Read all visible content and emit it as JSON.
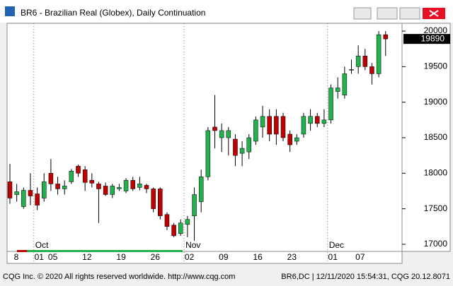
{
  "window_title": "BR6 - Brazilian Real (Globex), Daily Continuation",
  "footer_left": "CQG Inc. © 2020 All rights reserved worldwide. http://www.cqg.com",
  "footer_right": "BR6,DC | 12/11/2020 15:54:31, CQG 20.12.8071",
  "chart_data": {
    "type": "candlestick",
    "categories": [
      null,
      "8",
      null,
      null,
      "01",
      null,
      "05",
      null,
      null,
      null,
      null,
      "12",
      null,
      null,
      null,
      null,
      "19",
      null,
      null,
      null,
      null,
      "26",
      null,
      null,
      null,
      null,
      "02",
      null,
      null,
      null,
      null,
      "09",
      null,
      null,
      null,
      null,
      "16",
      null,
      null,
      null,
      null,
      "23",
      null,
      null,
      null,
      null,
      null,
      "01",
      null,
      null,
      null,
      "07",
      null,
      null,
      null,
      null
    ],
    "month_labels": [
      null,
      null,
      null,
      null,
      "Oct",
      null,
      null,
      null,
      null,
      null,
      null,
      null,
      null,
      null,
      null,
      null,
      null,
      null,
      null,
      null,
      null,
      null,
      null,
      null,
      null,
      null,
      "Nov",
      null,
      null,
      null,
      null,
      null,
      null,
      null,
      null,
      null,
      null,
      null,
      null,
      null,
      null,
      null,
      null,
      null,
      null,
      null,
      null,
      "Dec",
      null,
      null,
      null,
      null,
      null,
      null,
      null,
      null
    ],
    "open": [
      17880,
      17700,
      17530,
      17760,
      17710,
      17650,
      18000,
      17850,
      17780,
      17880,
      18100,
      18050,
      17900,
      17850,
      17820,
      17700,
      17780,
      17750,
      17900,
      17800,
      17830,
      17780,
      17780,
      17420,
      17270,
      17150,
      17280,
      17400,
      17600,
      17950,
      18650,
      18500,
      18500,
      18480,
      18280,
      18300,
      18450,
      18650,
      18800,
      18800,
      18800,
      18550,
      18450,
      18550,
      18700,
      18800,
      18700,
      18750,
      19150,
      19100,
      19450,
      19500,
      19650,
      19500,
      19400,
      19950
    ],
    "high": [
      18130,
      17850,
      17800,
      18000,
      17800,
      18000,
      18200,
      17950,
      17900,
      18060,
      18120,
      18100,
      18000,
      17880,
      17870,
      17850,
      17850,
      17930,
      17950,
      17950,
      17850,
      17800,
      17800,
      17450,
      17300,
      17350,
      17400,
      17800,
      18050,
      18650,
      19100,
      18700,
      18650,
      18550,
      18450,
      18550,
      18800,
      18950,
      18900,
      18900,
      18850,
      18600,
      18550,
      18850,
      18900,
      18850,
      18900,
      19250,
      19350,
      19500,
      19600,
      19800,
      19750,
      19550,
      20000,
      20000
    ],
    "low": [
      17570,
      17600,
      17500,
      17550,
      17480,
      17600,
      17750,
      17700,
      17700,
      17850,
      17950,
      17750,
      17800,
      17300,
      17680,
      17650,
      17750,
      17720,
      17750,
      17760,
      17720,
      17450,
      17350,
      17200,
      17100,
      17120,
      17100,
      17050,
      17450,
      17900,
      18350,
      18300,
      18250,
      18100,
      18100,
      18200,
      18400,
      18500,
      18450,
      18400,
      18450,
      18300,
      18400,
      18500,
      18600,
      18650,
      18650,
      18700,
      19050,
      19050,
      19400,
      19400,
      19450,
      19250,
      19350,
      19650
    ],
    "close": [
      17650,
      17740,
      17760,
      17680,
      17550,
      17880,
      17850,
      17780,
      17820,
      18030,
      18000,
      17870,
      17860,
      17780,
      17700,
      17820,
      17800,
      17900,
      17780,
      17850,
      17780,
      17500,
      17400,
      17250,
      17120,
      17300,
      17350,
      17700,
      17950,
      18600,
      18600,
      18600,
      18600,
      18250,
      18350,
      18500,
      18750,
      18800,
      18550,
      18550,
      18500,
      18400,
      18500,
      18800,
      18800,
      18700,
      18750,
      19200,
      19200,
      19400,
      19460,
      19650,
      19500,
      19400,
      19950,
      19890
    ],
    "up_color": "#22b14c",
    "down_color": "#c00000",
    "ylim": [
      16900,
      20110
    ],
    "yticks": [
      17000,
      17500,
      18000,
      18500,
      19000,
      19500,
      20000
    ]
  }
}
